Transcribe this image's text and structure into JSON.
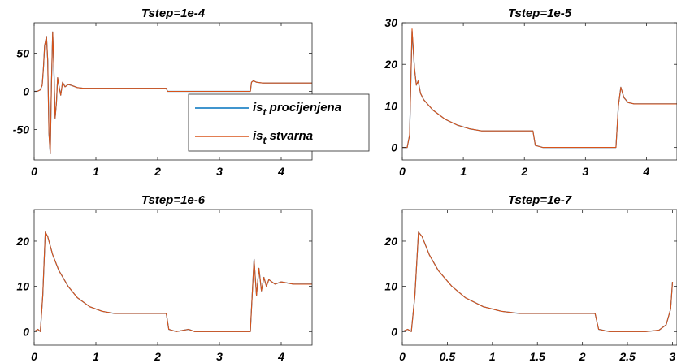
{
  "chart_data": [
    {
      "type": "line",
      "title": "Tstep=1e-4",
      "xlim": [
        0,
        4.5
      ],
      "ylim": [
        -90,
        90
      ],
      "xticks": [
        0,
        1,
        2,
        3,
        4
      ],
      "xtick_labels": [
        "0",
        "1",
        "2",
        "3",
        "4"
      ],
      "yticks": [
        -50,
        0,
        50
      ],
      "ytick_labels": [
        "-50",
        "0",
        "50"
      ],
      "grid": false,
      "legend": "center-right",
      "series": [
        {
          "name": "is_t procijenjena",
          "color": "#0072BD",
          "x": [
            0,
            0.05,
            0.1,
            0.13,
            0.15,
            0.17,
            0.2,
            0.22,
            0.24,
            0.26,
            0.28,
            0.3,
            0.32,
            0.34,
            0.36,
            0.38,
            0.4,
            0.43,
            0.46,
            0.5,
            0.55,
            0.6,
            0.7,
            0.8,
            1.0,
            1.5,
            2.0,
            2.14,
            2.16,
            2.5,
            3.0,
            3.5,
            3.52,
            3.55,
            3.6,
            3.7,
            4.0,
            4.5
          ],
          "y": [
            0,
            0,
            2,
            8,
            30,
            60,
            72,
            40,
            -55,
            -82,
            10,
            78,
            30,
            -35,
            -15,
            18,
            8,
            -5,
            12,
            6,
            9,
            8,
            5,
            4,
            4,
            4,
            4,
            4,
            0,
            0,
            0,
            0,
            12,
            14,
            12,
            11,
            11,
            11
          ]
        },
        {
          "name": "is_t stvarna",
          "color": "#D95319",
          "x": [
            0,
            0.05,
            0.1,
            0.13,
            0.15,
            0.17,
            0.2,
            0.22,
            0.24,
            0.26,
            0.28,
            0.3,
            0.32,
            0.34,
            0.36,
            0.38,
            0.4,
            0.43,
            0.46,
            0.5,
            0.55,
            0.6,
            0.7,
            0.8,
            1.0,
            1.5,
            2.0,
            2.14,
            2.16,
            2.5,
            3.0,
            3.5,
            3.52,
            3.55,
            3.6,
            3.7,
            4.0,
            4.5
          ],
          "y": [
            0,
            0,
            2,
            8,
            30,
            60,
            72,
            40,
            -55,
            -82,
            10,
            78,
            30,
            -35,
            -15,
            18,
            8,
            -5,
            12,
            6,
            9,
            8,
            5,
            4,
            4,
            4,
            4,
            4,
            0,
            0,
            0,
            0,
            12,
            14,
            12,
            11,
            11,
            11
          ]
        }
      ]
    },
    {
      "type": "line",
      "title": "Tstep=1e-5",
      "xlim": [
        0,
        4.5
      ],
      "ylim": [
        -3,
        30
      ],
      "xticks": [
        0,
        1,
        2,
        3,
        4
      ],
      "xtick_labels": [
        "0",
        "1",
        "2",
        "3",
        "4"
      ],
      "yticks": [
        0,
        10,
        20,
        30
      ],
      "ytick_labels": [
        "0",
        "10",
        "20",
        "30"
      ],
      "grid": false,
      "series": [
        {
          "name": "is_t procijenjena",
          "color": "#0072BD",
          "x": [
            0,
            0.08,
            0.12,
            0.16,
            0.2,
            0.23,
            0.26,
            0.3,
            0.35,
            0.5,
            0.7,
            0.9,
            1.1,
            1.3,
            1.6,
            2.0,
            2.14,
            2.18,
            2.3,
            3.0,
            3.5,
            3.54,
            3.58,
            3.63,
            3.7,
            3.8,
            4.0,
            4.5
          ],
          "y": [
            0,
            0,
            3,
            28,
            19,
            15,
            16,
            13,
            11.5,
            9,
            6.8,
            5.4,
            4.5,
            4,
            4,
            4,
            4,
            0.5,
            0,
            0,
            0,
            10,
            14.5,
            12,
            10.8,
            10.5,
            10.5,
            10.5
          ]
        },
        {
          "name": "is_t stvarna",
          "color": "#D95319",
          "x": [
            0,
            0.08,
            0.12,
            0.16,
            0.2,
            0.23,
            0.26,
            0.3,
            0.35,
            0.5,
            0.7,
            0.9,
            1.1,
            1.3,
            1.6,
            2.0,
            2.14,
            2.18,
            2.3,
            3.0,
            3.5,
            3.54,
            3.58,
            3.63,
            3.7,
            3.8,
            4.0,
            4.5
          ],
          "y": [
            0,
            0,
            3,
            28.5,
            19,
            15,
            16,
            13,
            11.5,
            9,
            6.8,
            5.4,
            4.5,
            4,
            4,
            4,
            4,
            0.5,
            0,
            0,
            0,
            10,
            14.5,
            12,
            10.8,
            10.5,
            10.5,
            10.5
          ]
        }
      ]
    },
    {
      "type": "line",
      "title": "Tstep=1e-6",
      "xlim": [
        0,
        4.5
      ],
      "ylim": [
        -3,
        27
      ],
      "xticks": [
        0,
        1,
        2,
        3,
        4
      ],
      "xtick_labels": [
        "0",
        "1",
        "2",
        "3",
        "4"
      ],
      "yticks": [
        0,
        10,
        20
      ],
      "ytick_labels": [
        "0",
        "10",
        "20"
      ],
      "grid": false,
      "series": [
        {
          "name": "is_t procijenjena",
          "color": "#0072BD",
          "x": [
            0,
            0.06,
            0.1,
            0.14,
            0.18,
            0.22,
            0.3,
            0.4,
            0.55,
            0.7,
            0.9,
            1.1,
            1.3,
            1.6,
            2.0,
            2.14,
            2.18,
            2.3,
            2.5,
            2.6,
            3.0,
            3.5,
            3.53,
            3.56,
            3.6,
            3.64,
            3.68,
            3.72,
            3.76,
            3.8,
            3.9,
            4.0,
            4.2,
            4.5
          ],
          "y": [
            0,
            0.5,
            0,
            8,
            22,
            21,
            17,
            13.5,
            10,
            7.5,
            5.5,
            4.5,
            4,
            4,
            4,
            4,
            0.5,
            0,
            0.5,
            0,
            0,
            0,
            8,
            16,
            8,
            14,
            9,
            12,
            10,
            11.5,
            10.5,
            11,
            10.5,
            10.5
          ]
        },
        {
          "name": "is_t stvarna",
          "color": "#D95319",
          "x": [
            0,
            0.06,
            0.1,
            0.14,
            0.18,
            0.22,
            0.3,
            0.4,
            0.55,
            0.7,
            0.9,
            1.1,
            1.3,
            1.6,
            2.0,
            2.14,
            2.18,
            2.3,
            2.5,
            2.6,
            3.0,
            3.5,
            3.53,
            3.56,
            3.6,
            3.64,
            3.68,
            3.72,
            3.76,
            3.8,
            3.9,
            4.0,
            4.2,
            4.5
          ],
          "y": [
            0,
            0.5,
            0,
            8,
            22,
            21,
            17,
            13.5,
            10,
            7.5,
            5.5,
            4.5,
            4,
            4,
            4,
            4,
            0.5,
            0,
            0.5,
            0,
            0,
            0,
            8,
            16,
            8,
            14,
            9,
            12,
            10,
            11.5,
            10.5,
            11,
            10.5,
            10.5
          ]
        }
      ]
    },
    {
      "type": "line",
      "title": "Tstep=1e-7",
      "xlim": [
        0,
        3.05
      ],
      "ylim": [
        -3,
        27
      ],
      "xticks": [
        0,
        0.5,
        1,
        1.5,
        2,
        2.5,
        3
      ],
      "xtick_labels": [
        "0",
        "0.5",
        "1",
        "1.5",
        "2",
        "2.5",
        "3"
      ],
      "yticks": [
        0,
        10,
        20
      ],
      "ytick_labels": [
        "0",
        "10",
        "20"
      ],
      "grid": false,
      "series": [
        {
          "name": "is_t procijenjena",
          "color": "#0072BD",
          "x": [
            0,
            0.06,
            0.1,
            0.14,
            0.18,
            0.22,
            0.3,
            0.4,
            0.55,
            0.7,
            0.9,
            1.1,
            1.3,
            1.6,
            2.0,
            2.14,
            2.18,
            2.3,
            2.5,
            2.7,
            2.85,
            2.93,
            2.98,
            3.0
          ],
          "y": [
            0,
            0.5,
            0,
            8,
            22,
            21,
            17,
            13.5,
            10,
            7.5,
            5.5,
            4.5,
            4,
            4,
            4,
            4,
            0.5,
            0,
            0,
            0,
            0.3,
            1.5,
            5,
            11
          ]
        },
        {
          "name": "is_t stvarna",
          "color": "#D95319",
          "x": [
            0,
            0.06,
            0.1,
            0.14,
            0.18,
            0.22,
            0.3,
            0.4,
            0.55,
            0.7,
            0.9,
            1.1,
            1.3,
            1.6,
            2.0,
            2.14,
            2.18,
            2.3,
            2.5,
            2.7,
            2.85,
            2.93,
            2.98,
            3.0
          ],
          "y": [
            0,
            0.5,
            0,
            8,
            22,
            21,
            17,
            13.5,
            10,
            7.5,
            5.5,
            4.5,
            4,
            4,
            4,
            4,
            0.5,
            0,
            0,
            0,
            0.3,
            1.5,
            5,
            11
          ]
        }
      ]
    }
  ],
  "legend": {
    "entry1_main": "is",
    "entry1_sub": "t",
    "entry1_rest": " procijenjena",
    "entry2_main": "is",
    "entry2_sub": "t",
    "entry2_rest": " stvarna",
    "color1": "#0072BD",
    "color2": "#D95319"
  }
}
